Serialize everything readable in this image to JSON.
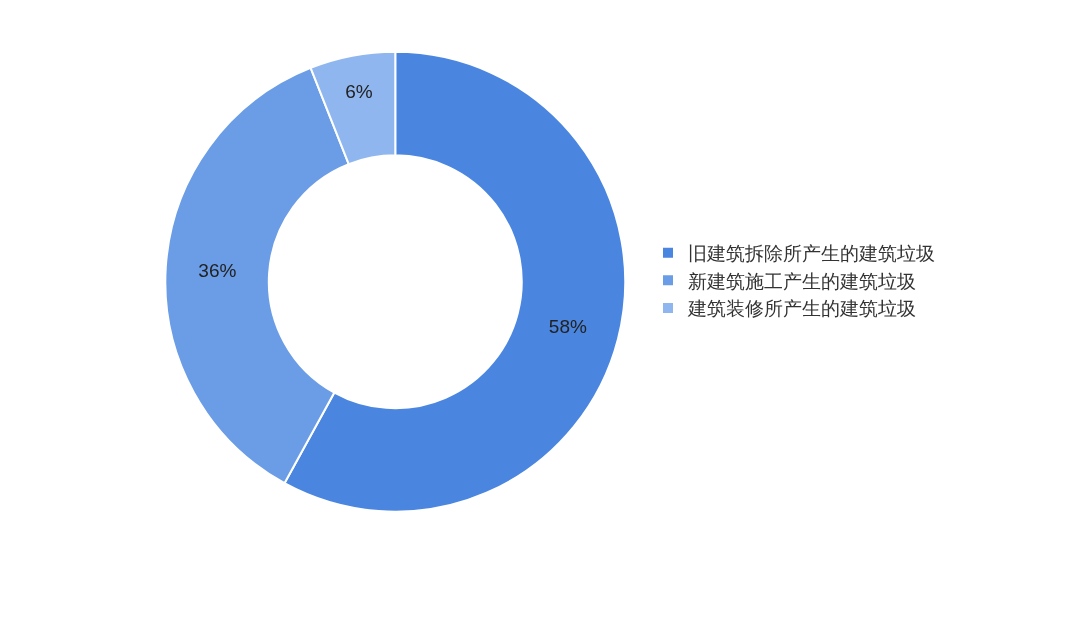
{
  "chart_data": {
    "type": "donut",
    "categories": [
      "旧建筑拆除所产生的建筑垃圾",
      "新建筑施工产生的建筑垃圾",
      "建筑装修所产生的建筑垃圾"
    ],
    "values": [
      58,
      36,
      6
    ],
    "colors": [
      "#4a86e0",
      "#6a9de6",
      "#8fb6ee"
    ],
    "value_labels": [
      "58%",
      "36%",
      "6%"
    ],
    "legend": "right"
  }
}
